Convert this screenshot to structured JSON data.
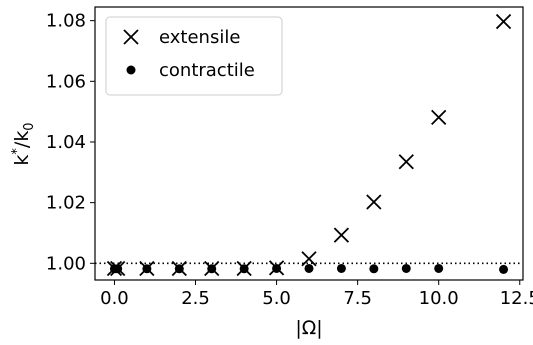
{
  "chart_data": {
    "type": "scatter",
    "title": "",
    "xlabel": "|Ω|",
    "ylabel": "k*/k0",
    "ylabel_main": "k",
    "ylabel_sup": "*",
    "ylabel_div": "/k",
    "ylabel_sub": "0",
    "xlim": [
      -0.6,
      12.6
    ],
    "ylim": [
      0.9945,
      1.0845
    ],
    "xticks": [
      0.0,
      2.5,
      5.0,
      7.5,
      10.0,
      12.5
    ],
    "xtick_labels": [
      "0.0",
      "2.5",
      "5.0",
      "7.5",
      "10.0",
      "12.5"
    ],
    "yticks": [
      1.0,
      1.02,
      1.04,
      1.06,
      1.08
    ],
    "ytick_labels": [
      "1.00",
      "1.02",
      "1.04",
      "1.06",
      "1.08"
    ],
    "reference_line": {
      "y": 1.0,
      "style": "dotted",
      "color": "#000000"
    },
    "legend": {
      "position": "top-left"
    },
    "grid": false,
    "series": [
      {
        "name": "extensile",
        "marker": "x",
        "color": "#000000",
        "x": [
          0.0,
          0.1,
          1.0,
          2.0,
          3.0,
          4.0,
          5.0,
          6.0,
          7.0,
          8.0,
          9.0,
          10.0,
          12.0
        ],
        "y": [
          0.9983,
          0.9983,
          0.9983,
          0.9983,
          0.9983,
          0.9983,
          0.9985,
          1.0015,
          1.0093,
          1.0202,
          1.0335,
          1.0481,
          1.0797
        ]
      },
      {
        "name": "contractile",
        "marker": "o",
        "color": "#000000",
        "x": [
          0.0,
          0.1,
          1.0,
          2.0,
          3.0,
          4.0,
          5.0,
          6.0,
          7.0,
          8.0,
          9.0,
          10.0,
          12.0
        ],
        "y": [
          0.9982,
          0.9982,
          0.9982,
          0.9982,
          0.9982,
          0.9982,
          0.9983,
          0.9983,
          0.9983,
          0.9982,
          0.9983,
          0.9983,
          0.998
        ]
      }
    ]
  }
}
